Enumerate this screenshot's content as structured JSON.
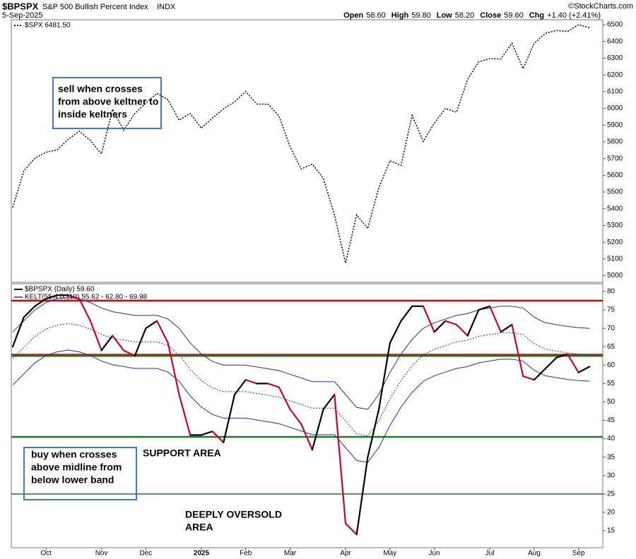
{
  "header": {
    "symbol": "$BPSPX",
    "name": "S&P 500 Bullish Percent Index",
    "exchange": "INDX",
    "date": "5-Sep-2025",
    "credit": "©StockCharts.com",
    "quote": [
      {
        "label": "Open",
        "value": "58.60"
      },
      {
        "label": "High",
        "value": "59.80"
      },
      {
        "label": "Low",
        "value": "58.20"
      },
      {
        "label": "Close",
        "value": "59.60"
      },
      {
        "label": "Chg",
        "value": "+1.40 (+2.41%)"
      }
    ]
  },
  "chart_data": [
    {
      "type": "line",
      "categories": [
        null,
        null,
        null,
        "Oct",
        null,
        null,
        null,
        null,
        "Nov",
        null,
        null,
        null,
        "Dec",
        null,
        null,
        null,
        null,
        "2025",
        null,
        null,
        null,
        "Feb",
        null,
        null,
        null,
        "Mar",
        null,
        null,
        null,
        null,
        "Apr",
        null,
        null,
        null,
        "May",
        null,
        null,
        null,
        "Jun",
        null,
        null,
        null,
        null,
        "Jul",
        null,
        null,
        null,
        "Aug",
        null,
        null,
        null,
        "Sep",
        null
      ],
      "series": [
        {
          "name": "$SPX 6481.50",
          "color": "#000000",
          "dash": true,
          "values": [
            5408,
            5626,
            5702,
            5738,
            5751,
            5815,
            5864,
            5808,
            5728,
            5995,
            5870,
            5969,
            6032,
            6090,
            6051,
            5930,
            5970,
            5881,
            5942,
            5997,
            6040,
            6101,
            6026,
            6025,
            5955,
            5770,
            5638,
            5667,
            5581,
            5363,
            5075,
            5363,
            5282,
            5525,
            5687,
            5659,
            5958,
            5802,
            5912,
            6000,
            5977,
            6173,
            6279,
            6297,
            6296,
            6389,
            6238,
            6389,
            6449,
            6466,
            6460,
            6501,
            6481.5
          ]
        }
      ],
      "ylim": [
        4960,
        6530
      ],
      "yticks": [
        5000,
        5100,
        5200,
        5300,
        5400,
        5500,
        5600,
        5700,
        5800,
        5900,
        6000,
        6100,
        6200,
        6300,
        6400,
        6500
      ],
      "annotations": [
        {
          "lines": [
            "sell when crosses",
            "from above keltner to",
            "inside keltners"
          ],
          "color": "#e00000",
          "box_color": "#3a7bd5"
        }
      ]
    },
    {
      "type": "line",
      "categories": [
        null,
        null,
        null,
        "Oct",
        null,
        null,
        null,
        null,
        "Nov",
        null,
        null,
        null,
        "Dec",
        null,
        null,
        null,
        null,
        "2025",
        null,
        null,
        null,
        "Feb",
        null,
        null,
        null,
        "Mar",
        null,
        null,
        null,
        null,
        "Apr",
        null,
        null,
        null,
        "May",
        null,
        null,
        null,
        "Jun",
        null,
        null,
        null,
        null,
        "Jul",
        null,
        null,
        null,
        "Aug",
        null,
        null,
        null,
        "Sep",
        null
      ],
      "series": [
        {
          "name": "$BPSPX (Daily) 59.60",
          "color": "#000000",
          "down_color": "#cc0033",
          "values": [
            65,
            73,
            76,
            78,
            79,
            79,
            78,
            72,
            64,
            68,
            64,
            62.5,
            70,
            72,
            66,
            52,
            41,
            41,
            42,
            39,
            52,
            56,
            55,
            55,
            54,
            48,
            44,
            37,
            48,
            52,
            17,
            14,
            35,
            48,
            66,
            72,
            76,
            76,
            69,
            72,
            71,
            68,
            75,
            76,
            69,
            71,
            57,
            56,
            59,
            62,
            63,
            58,
            59.6
          ]
        }
      ],
      "keltner": {
        "name": "KELT(55,4.0,110) 55.62 - 62.80 - 69.98",
        "color": "#1f2fb0",
        "upper": [
          69,
          72,
          75,
          77,
          78,
          78.5,
          78,
          77,
          75.5,
          74.5,
          74,
          73.5,
          73.5,
          73.5,
          72.5,
          70,
          66,
          63,
          61,
          60,
          60,
          60,
          59.5,
          59,
          58.5,
          57.5,
          56.5,
          55.5,
          55.5,
          55.5,
          52,
          48.5,
          48,
          52,
          58,
          63,
          67,
          70,
          71.5,
          72.5,
          73.5,
          74,
          75,
          75.5,
          76,
          76,
          75.5,
          73,
          71.5,
          71,
          70.5,
          70.2,
          69.98
        ],
        "middle": [
          61.8,
          64.8,
          67.8,
          69.8,
          70.8,
          71.3,
          70.8,
          69.8,
          68.3,
          67.3,
          66.8,
          66.3,
          66.3,
          66.3,
          65.3,
          62.8,
          58.8,
          55.8,
          53.8,
          52.8,
          52.8,
          52.8,
          52.3,
          51.8,
          51.3,
          50.3,
          49.3,
          48.3,
          48.3,
          48.3,
          44.8,
          41.3,
          40.8,
          44.8,
          50.8,
          55.8,
          59.8,
          62.8,
          64.3,
          65.3,
          66.3,
          66.8,
          67.8,
          68.3,
          68.8,
          68.8,
          68.3,
          65.8,
          64.3,
          63.8,
          63.3,
          63.0,
          62.8
        ],
        "lower": [
          54.6,
          57.6,
          60.6,
          62.6,
          63.6,
          64.1,
          63.6,
          62.6,
          61.1,
          60.1,
          59.6,
          59.1,
          59.1,
          59.1,
          58.1,
          55.6,
          51.6,
          48.6,
          46.6,
          45.6,
          45.6,
          45.6,
          45.1,
          44.6,
          44.1,
          43.1,
          42.1,
          41.1,
          41.1,
          41.1,
          37.6,
          34.1,
          33.6,
          37.6,
          43.6,
          48.6,
          52.6,
          55.6,
          57.1,
          58.1,
          59.1,
          59.6,
          60.6,
          61.1,
          61.6,
          61.6,
          61.1,
          58.6,
          57.1,
          56.6,
          56.1,
          55.8,
          55.62
        ]
      },
      "hlines": [
        {
          "value": 77.5,
          "color": "#e00000"
        },
        {
          "value": 62.8,
          "color": "#e00000"
        },
        {
          "value": 62.5,
          "color": "#1e7a1e"
        },
        {
          "value": 40.5,
          "color": "#1e7a1e"
        },
        {
          "value": 25,
          "color": "#1e7a1e"
        }
      ],
      "ylim": [
        10.4,
        82.1
      ],
      "yticks": [
        15,
        20,
        25,
        30,
        35,
        40,
        45,
        50,
        55,
        60,
        65,
        70,
        75,
        80
      ],
      "annotations": [
        {
          "lines": [
            "buy when crosses",
            "above midline from",
            "below lower band"
          ],
          "color": "#1f3fa0",
          "box_color": "#3a7bd5"
        },
        {
          "lines": [
            "SUPPORT AREA"
          ],
          "color": "#2e8b2e"
        },
        {
          "lines": [
            "DEEPLY  OVERSOLD",
            "AREA"
          ],
          "color": "#2e8b2e"
        }
      ]
    }
  ]
}
